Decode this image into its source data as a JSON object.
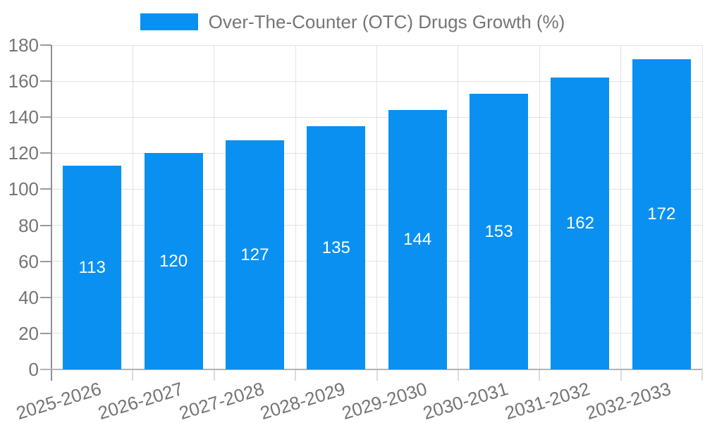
{
  "chart_data": {
    "type": "bar",
    "title": "Over-The-Counter (OTC) Drugs Growth (%)",
    "categories": [
      "2025-2026",
      "2026-2027",
      "2027-2028",
      "2028-2029",
      "2029-2030",
      "2030-2031",
      "2031-2032",
      "2032-2033"
    ],
    "series": [
      {
        "name": "Over-The-Counter (OTC) Drugs Growth (%)",
        "values": [
          113,
          120,
          127,
          135,
          144,
          153,
          162,
          172
        ]
      }
    ],
    "value_labels": [
      "113",
      "120",
      "127",
      "135",
      "144",
      "153",
      "162",
      "172"
    ],
    "xlabel": "",
    "ylabel": "",
    "ylim": [
      0,
      180
    ],
    "yticks": [
      0,
      20,
      40,
      60,
      80,
      100,
      120,
      140,
      160,
      180
    ],
    "grid": true,
    "legend_position": "top",
    "x_label_rotation_deg": -17
  },
  "colors": {
    "bar": "#0a90f0",
    "axis_text": "#757575",
    "value_label_text": "#ffffff",
    "gridline": "#e3e3e3",
    "y_axis_line": "#8f8f8f",
    "x_axis_line": "#b3b3b3",
    "background": "#ffffff"
  }
}
